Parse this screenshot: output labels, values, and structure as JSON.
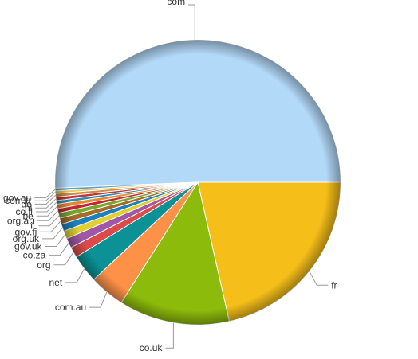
{
  "chart_data": {
    "type": "pie",
    "title": "",
    "categories": [
      "com",
      "fr",
      "co.uk",
      "com.au",
      "net",
      "org",
      "co.za",
      "gov.uk",
      "org.uk",
      "gov.fj",
      "it",
      "org.au",
      "be",
      "co.il",
      "nl",
      "de",
      "com.tr",
      "gov.au"
    ],
    "values": [
      50.5,
      21.4,
      12.5,
      4.0,
      3.2,
      1.2,
      1.1,
      0.9,
      0.8,
      0.7,
      0.6,
      0.5,
      0.5,
      0.4,
      0.4,
      0.4,
      0.3,
      0.3
    ],
    "colors": [
      "#b3d9f9",
      "#f5be19",
      "#8dbb0b",
      "#fe9148",
      "#0b9196",
      "#db4b4b",
      "#9f58a8",
      "#e1d030",
      "#1b7fc0",
      "#a66b26",
      "#74a92e",
      "#c2262f",
      "#e8872d",
      "#2e8db6",
      "#bf3838",
      "#d08a3f",
      "#e7c85a",
      "#5aa0c8"
    ],
    "legend": "none",
    "data_labels": "outside-with-leader-lines"
  }
}
